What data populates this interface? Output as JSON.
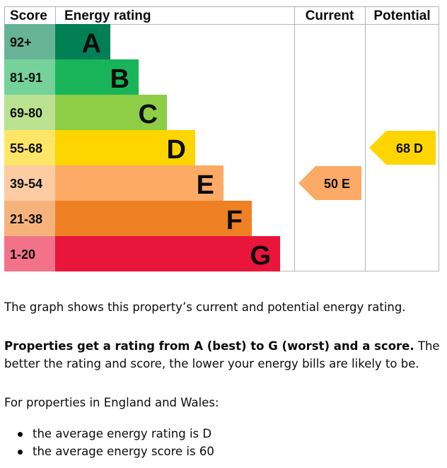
{
  "chart_data": {
    "type": "bar",
    "headers": {
      "score": "Score",
      "rating": "Energy rating",
      "current": "Current",
      "potential": "Potential"
    },
    "bands": [
      {
        "score": "92+",
        "letter": "A",
        "color": "#008054",
        "score_bg": "#66b398"
      },
      {
        "score": "81-91",
        "letter": "B",
        "color": "#19b459",
        "score_bg": "#75d29b"
      },
      {
        "score": "69-80",
        "letter": "C",
        "color": "#8dce46",
        "score_bg": "#bbe290"
      },
      {
        "score": "55-68",
        "letter": "D",
        "color": "#ffd500",
        "score_bg": "#ffe666"
      },
      {
        "score": "39-54",
        "letter": "E",
        "color": "#fcaa65",
        "score_bg": "#fdcca3"
      },
      {
        "score": "21-38",
        "letter": "F",
        "color": "#ef8023",
        "score_bg": "#f5b37b"
      },
      {
        "score": "1-20",
        "letter": "G",
        "color": "#e9153b",
        "score_bg": "#f27389"
      }
    ],
    "current": {
      "score": 50,
      "letter": "E",
      "label": "50  E",
      "color": "#fcaa65"
    },
    "potential": {
      "score": 68,
      "letter": "D",
      "label": "68  D",
      "color": "#ffd500"
    }
  },
  "text": {
    "para1": "The graph shows this property’s current and potential energy rating.",
    "para2_bold": "Properties get a rating from A (best) to G (worst) and a score.",
    "para2_rest": " The better the rating and score, the lower your energy bills are likely to be.",
    "para3": "For properties in England and Wales:",
    "bullets": [
      "the average energy rating is D",
      "the average energy score is 60"
    ]
  }
}
